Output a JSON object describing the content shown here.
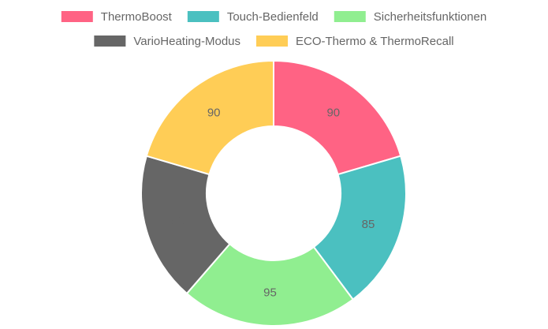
{
  "chart_data": {
    "type": "doughnut",
    "categories": [
      "ThermoBoost",
      "Touch-Bedienfeld",
      "Sicherheitsfunktionen",
      "VarioHeating-Modus",
      "ECO-Thermo & ThermoRecall"
    ],
    "values": [
      90,
      85,
      95,
      80,
      90
    ],
    "colors": [
      "#ff6384",
      "#4bc0c0",
      "#90ee90",
      "#666666",
      "#ffcd56"
    ],
    "legend": "top"
  }
}
